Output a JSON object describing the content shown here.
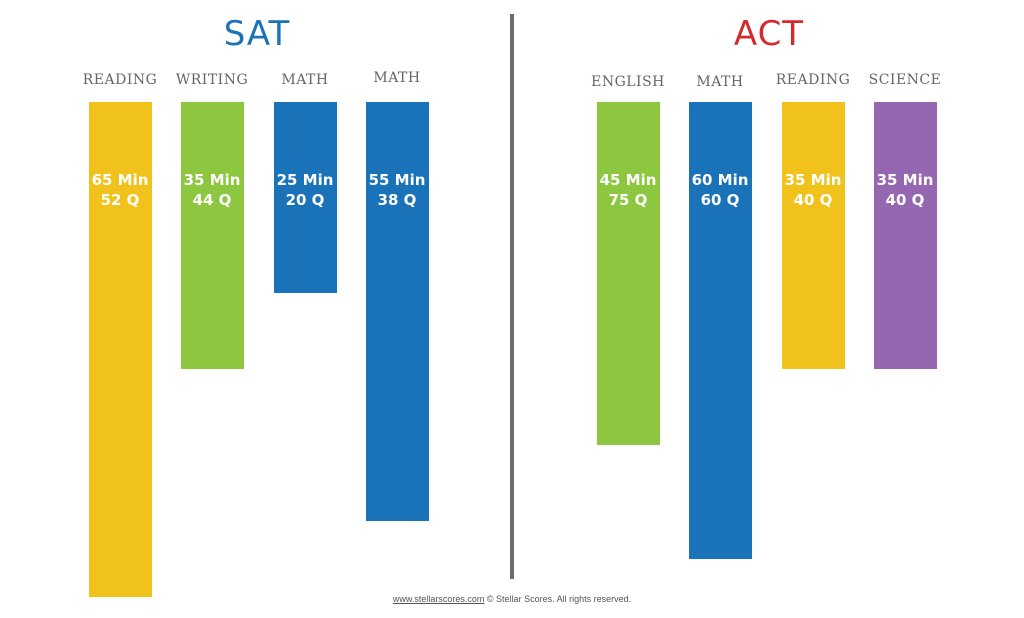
{
  "chart_data": [
    {
      "type": "bar",
      "title": "SAT",
      "title_color": "#1a72b9",
      "categories": [
        "READING",
        "WRITING",
        "MATH",
        "MATH"
      ],
      "series": [
        {
          "values": [
            65,
            35,
            25,
            55
          ],
          "questions": [
            52,
            44,
            20,
            38
          ]
        }
      ],
      "bar_labels": [
        [
          "65 Min",
          "52 Q"
        ],
        [
          "35 Min",
          "44 Q"
        ],
        [
          "25 Min",
          "20 Q"
        ],
        [
          "55 Min",
          "38 Q"
        ]
      ],
      "colors": [
        "#f0c21b",
        "#8dc63f",
        "#1a72b9",
        "#1a72b9"
      ],
      "ylim": [
        0,
        65
      ]
    },
    {
      "type": "bar",
      "title": "ACT",
      "title_color": "#d22a2f",
      "categories": [
        "ENGLISH",
        "MATH",
        "READING",
        "SCIENCE"
      ],
      "series": [
        {
          "values": [
            45,
            60,
            35,
            35
          ],
          "questions": [
            75,
            60,
            40,
            40
          ]
        }
      ],
      "bar_labels": [
        [
          "45 Min",
          "75 Q"
        ],
        [
          "60 Min",
          "60 Q"
        ],
        [
          "35 Min",
          "40 Q"
        ],
        [
          "35 Min",
          "40 Q"
        ]
      ],
      "colors": [
        "#8dc63f",
        "#1a72b9",
        "#f0c21b",
        "#9467b0"
      ],
      "ylim": [
        0,
        65
      ]
    }
  ],
  "footer": {
    "link": "www.stellarscores.com",
    "text": " © Stellar Scores. All rights reserved."
  }
}
